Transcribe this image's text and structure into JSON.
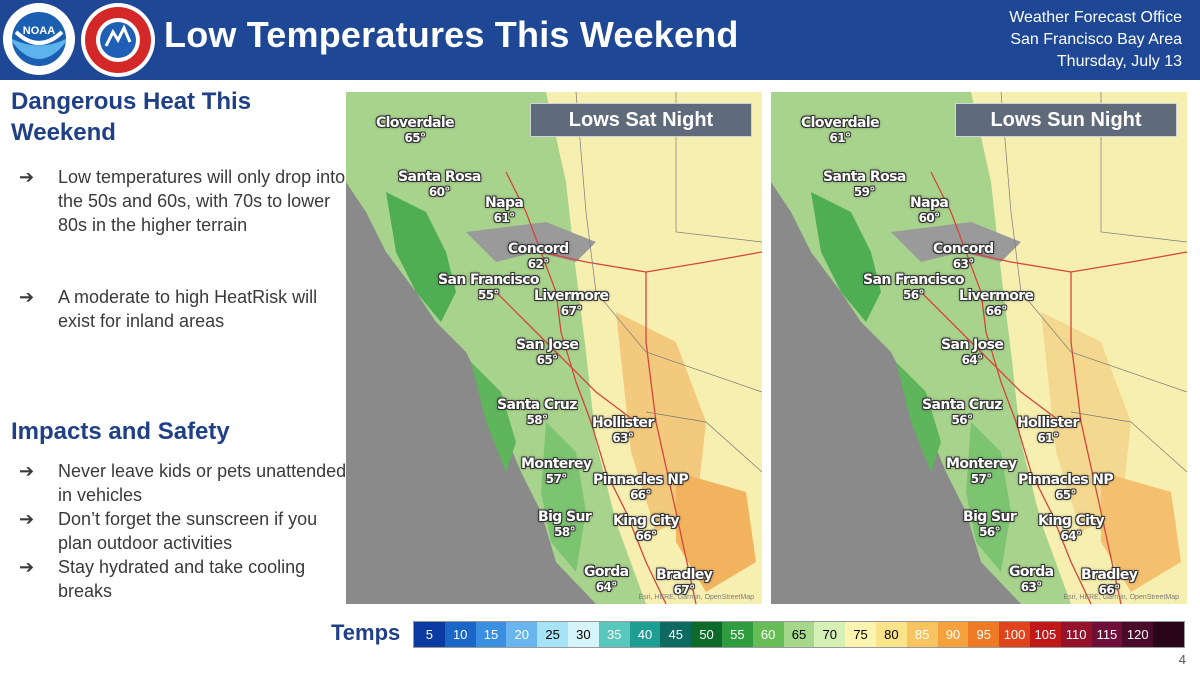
{
  "header": {
    "title": "Low Temperatures This Weekend",
    "office_line1": "Weather Forecast Office",
    "office_line2": "San Francisco Bay Area",
    "date": "Thursday, July 13",
    "noaa_logo_text": "NOAA",
    "nws_logo_text": "NATIONAL WEATHER SERVICE"
  },
  "left": {
    "section1_title": "Dangerous Heat This Weekend",
    "section1_bullets": [
      "Low temperatures will only drop into the 50s and 60s, with 70s to lower 80s in the higher terrain",
      "A moderate to high HeatRisk will exist for inland areas"
    ],
    "section2_title": "Impacts and Safety",
    "section2_bullets": [
      "Never leave kids or pets unattended in vehicles",
      "Don’t forget the sunscreen if you plan outdoor activities",
      "Stay hydrated and take cooling breaks"
    ],
    "bullet_glyph": "➔"
  },
  "maps": [
    {
      "caption": "Lows Sat Night",
      "cities": [
        {
          "name": "Cloverdale",
          "temp": "65°"
        },
        {
          "name": "Santa Rosa",
          "temp": "60°"
        },
        {
          "name": "Napa",
          "temp": "61°"
        },
        {
          "name": "Concord",
          "temp": "62°"
        },
        {
          "name": "San Francisco",
          "temp": "55°"
        },
        {
          "name": "Livermore",
          "temp": "67°"
        },
        {
          "name": "San Jose",
          "temp": "65°"
        },
        {
          "name": "Santa Cruz",
          "temp": "58°"
        },
        {
          "name": "Hollister",
          "temp": "63°"
        },
        {
          "name": "Monterey",
          "temp": "57°"
        },
        {
          "name": "Pinnacles NP",
          "temp": "66°"
        },
        {
          "name": "Big Sur",
          "temp": "58°"
        },
        {
          "name": "King City",
          "temp": "66°"
        },
        {
          "name": "Gorda",
          "temp": "64°"
        },
        {
          "name": "Bradley",
          "temp": "67°"
        }
      ]
    },
    {
      "caption": "Lows Sun Night",
      "cities": [
        {
          "name": "Cloverdale",
          "temp": "61°"
        },
        {
          "name": "Santa Rosa",
          "temp": "59°"
        },
        {
          "name": "Napa",
          "temp": "60°"
        },
        {
          "name": "Concord",
          "temp": "63°"
        },
        {
          "name": "San Francisco",
          "temp": "56°"
        },
        {
          "name": "Livermore",
          "temp": "66°"
        },
        {
          "name": "San Jose",
          "temp": "64°"
        },
        {
          "name": "Santa Cruz",
          "temp": "56°"
        },
        {
          "name": "Hollister",
          "temp": "61°"
        },
        {
          "name": "Monterey",
          "temp": "57°"
        },
        {
          "name": "Pinnacles NP",
          "temp": "65°"
        },
        {
          "name": "Big Sur",
          "temp": "56°"
        },
        {
          "name": "King City",
          "temp": "64°"
        },
        {
          "name": "Gorda",
          "temp": "63°"
        },
        {
          "name": "Bradley",
          "temp": "66°"
        }
      ]
    }
  ],
  "map_credit": "Esri, HERE, Garmin, OpenStreetMap",
  "legend": {
    "label": "Temps",
    "stops": [
      {
        "value": "5",
        "color": "#0b3aa0",
        "text_color": "#ffffff"
      },
      {
        "value": "10",
        "color": "#1a67c7",
        "text_color": "#ffffff"
      },
      {
        "value": "15",
        "color": "#3b8fe0",
        "text_color": "#ffffff"
      },
      {
        "value": "20",
        "color": "#69b6ef",
        "text_color": "#ffffff"
      },
      {
        "value": "25",
        "color": "#a6e3f7",
        "text_color": "#000000"
      },
      {
        "value": "30",
        "color": "#d6f5fb",
        "text_color": "#000000"
      },
      {
        "value": "35",
        "color": "#58c7bd",
        "text_color": "#ffffff"
      },
      {
        "value": "40",
        "color": "#1e9e92",
        "text_color": "#ffffff"
      },
      {
        "value": "45",
        "color": "#0d6a62",
        "text_color": "#ffffff"
      },
      {
        "value": "50",
        "color": "#0c6b2a",
        "text_color": "#ffffff"
      },
      {
        "value": "55",
        "color": "#2e9c3f",
        "text_color": "#ffffff"
      },
      {
        "value": "60",
        "color": "#66bd55",
        "text_color": "#ffffff"
      },
      {
        "value": "65",
        "color": "#a5d88a",
        "text_color": "#000000"
      },
      {
        "value": "70",
        "color": "#d6efb5",
        "text_color": "#000000"
      },
      {
        "value": "75",
        "color": "#fbf4b0",
        "text_color": "#000000"
      },
      {
        "value": "80",
        "color": "#fbe38a",
        "text_color": "#000000"
      },
      {
        "value": "85",
        "color": "#f8c45f",
        "text_color": "#ffffff"
      },
      {
        "value": "90",
        "color": "#f5a23c",
        "text_color": "#ffffff"
      },
      {
        "value": "95",
        "color": "#ef7a25",
        "text_color": "#ffffff"
      },
      {
        "value": "100",
        "color": "#e0441c",
        "text_color": "#ffffff"
      },
      {
        "value": "105",
        "color": "#c01818",
        "text_color": "#ffffff"
      },
      {
        "value": "110",
        "color": "#94122a",
        "text_color": "#ffffff"
      },
      {
        "value": "115",
        "color": "#6e0f3a",
        "text_color": "#ffffff"
      },
      {
        "value": "120",
        "color": "#4a0a2a",
        "text_color": "#ffffff"
      },
      {
        "value": "",
        "color": "#2a0418",
        "text_color": "#ffffff"
      }
    ]
  },
  "page_number": "4",
  "colors": {
    "header_bg": "#1e4796",
    "title_blue": "#1f3f86",
    "ocean": "#8a8a8a",
    "caption_bg": "#5f6b7a"
  }
}
